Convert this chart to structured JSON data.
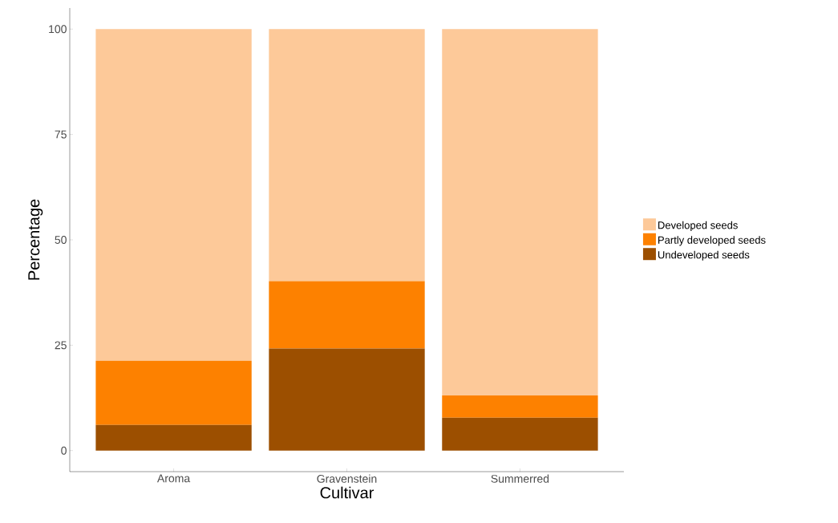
{
  "chart_data": {
    "type": "bar",
    "stacked": true,
    "xlabel": "Cultivar",
    "ylabel": "Percentage",
    "categories": [
      "Aroma",
      "Gravenstein",
      "Summerred"
    ],
    "series": [
      {
        "name": "Undeveloped seeds",
        "color": "#9c4f00",
        "values": [
          6.1,
          24.2,
          7.8
        ]
      },
      {
        "name": "Partly developed seeds",
        "color": "#fd8100",
        "values": [
          15.2,
          16.0,
          5.3
        ]
      },
      {
        "name": "Developed seeds",
        "color": "#fdc999",
        "values": [
          78.7,
          59.8,
          86.9
        ]
      }
    ],
    "ylim": [
      -5,
      105
    ],
    "yticks": [
      0,
      25,
      50,
      75,
      100
    ],
    "grid": false,
    "legend": "right"
  }
}
